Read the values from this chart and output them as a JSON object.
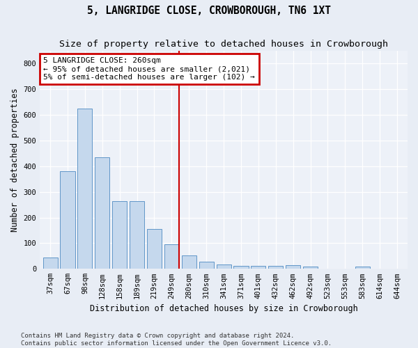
{
  "title": "5, LANGRIDGE CLOSE, CROWBOROUGH, TN6 1XT",
  "subtitle": "Size of property relative to detached houses in Crowborough",
  "xlabel": "Distribution of detached houses by size in Crowborough",
  "ylabel": "Number of detached properties",
  "categories": [
    "37sqm",
    "67sqm",
    "98sqm",
    "128sqm",
    "158sqm",
    "189sqm",
    "219sqm",
    "249sqm",
    "280sqm",
    "310sqm",
    "341sqm",
    "371sqm",
    "401sqm",
    "432sqm",
    "462sqm",
    "492sqm",
    "523sqm",
    "553sqm",
    "583sqm",
    "614sqm",
    "644sqm"
  ],
  "values": [
    45,
    380,
    625,
    435,
    265,
    265,
    155,
    96,
    52,
    28,
    18,
    12,
    12,
    12,
    15,
    8,
    0,
    0,
    8,
    0,
    0
  ],
  "bar_color": "#c5d8ed",
  "bar_edge_color": "#6096c8",
  "vline_x_index": 7,
  "vline_color": "#cc0000",
  "annotation_text": "5 LANGRIDGE CLOSE: 260sqm\n← 95% of detached houses are smaller (2,021)\n5% of semi-detached houses are larger (102) →",
  "annotation_box_color": "white",
  "annotation_box_edge_color": "#cc0000",
  "ylim": [
    0,
    850
  ],
  "yticks": [
    0,
    100,
    200,
    300,
    400,
    500,
    600,
    700,
    800
  ],
  "footer": "Contains HM Land Registry data © Crown copyright and database right 2024.\nContains public sector information licensed under the Open Government Licence v3.0.",
  "background_color": "#e8edf5",
  "plot_bg_color": "#edf1f8",
  "title_fontsize": 10.5,
  "subtitle_fontsize": 9.5,
  "axis_label_fontsize": 8.5,
  "tick_fontsize": 7.5,
  "footer_fontsize": 6.5,
  "annotation_fontsize": 8.0
}
